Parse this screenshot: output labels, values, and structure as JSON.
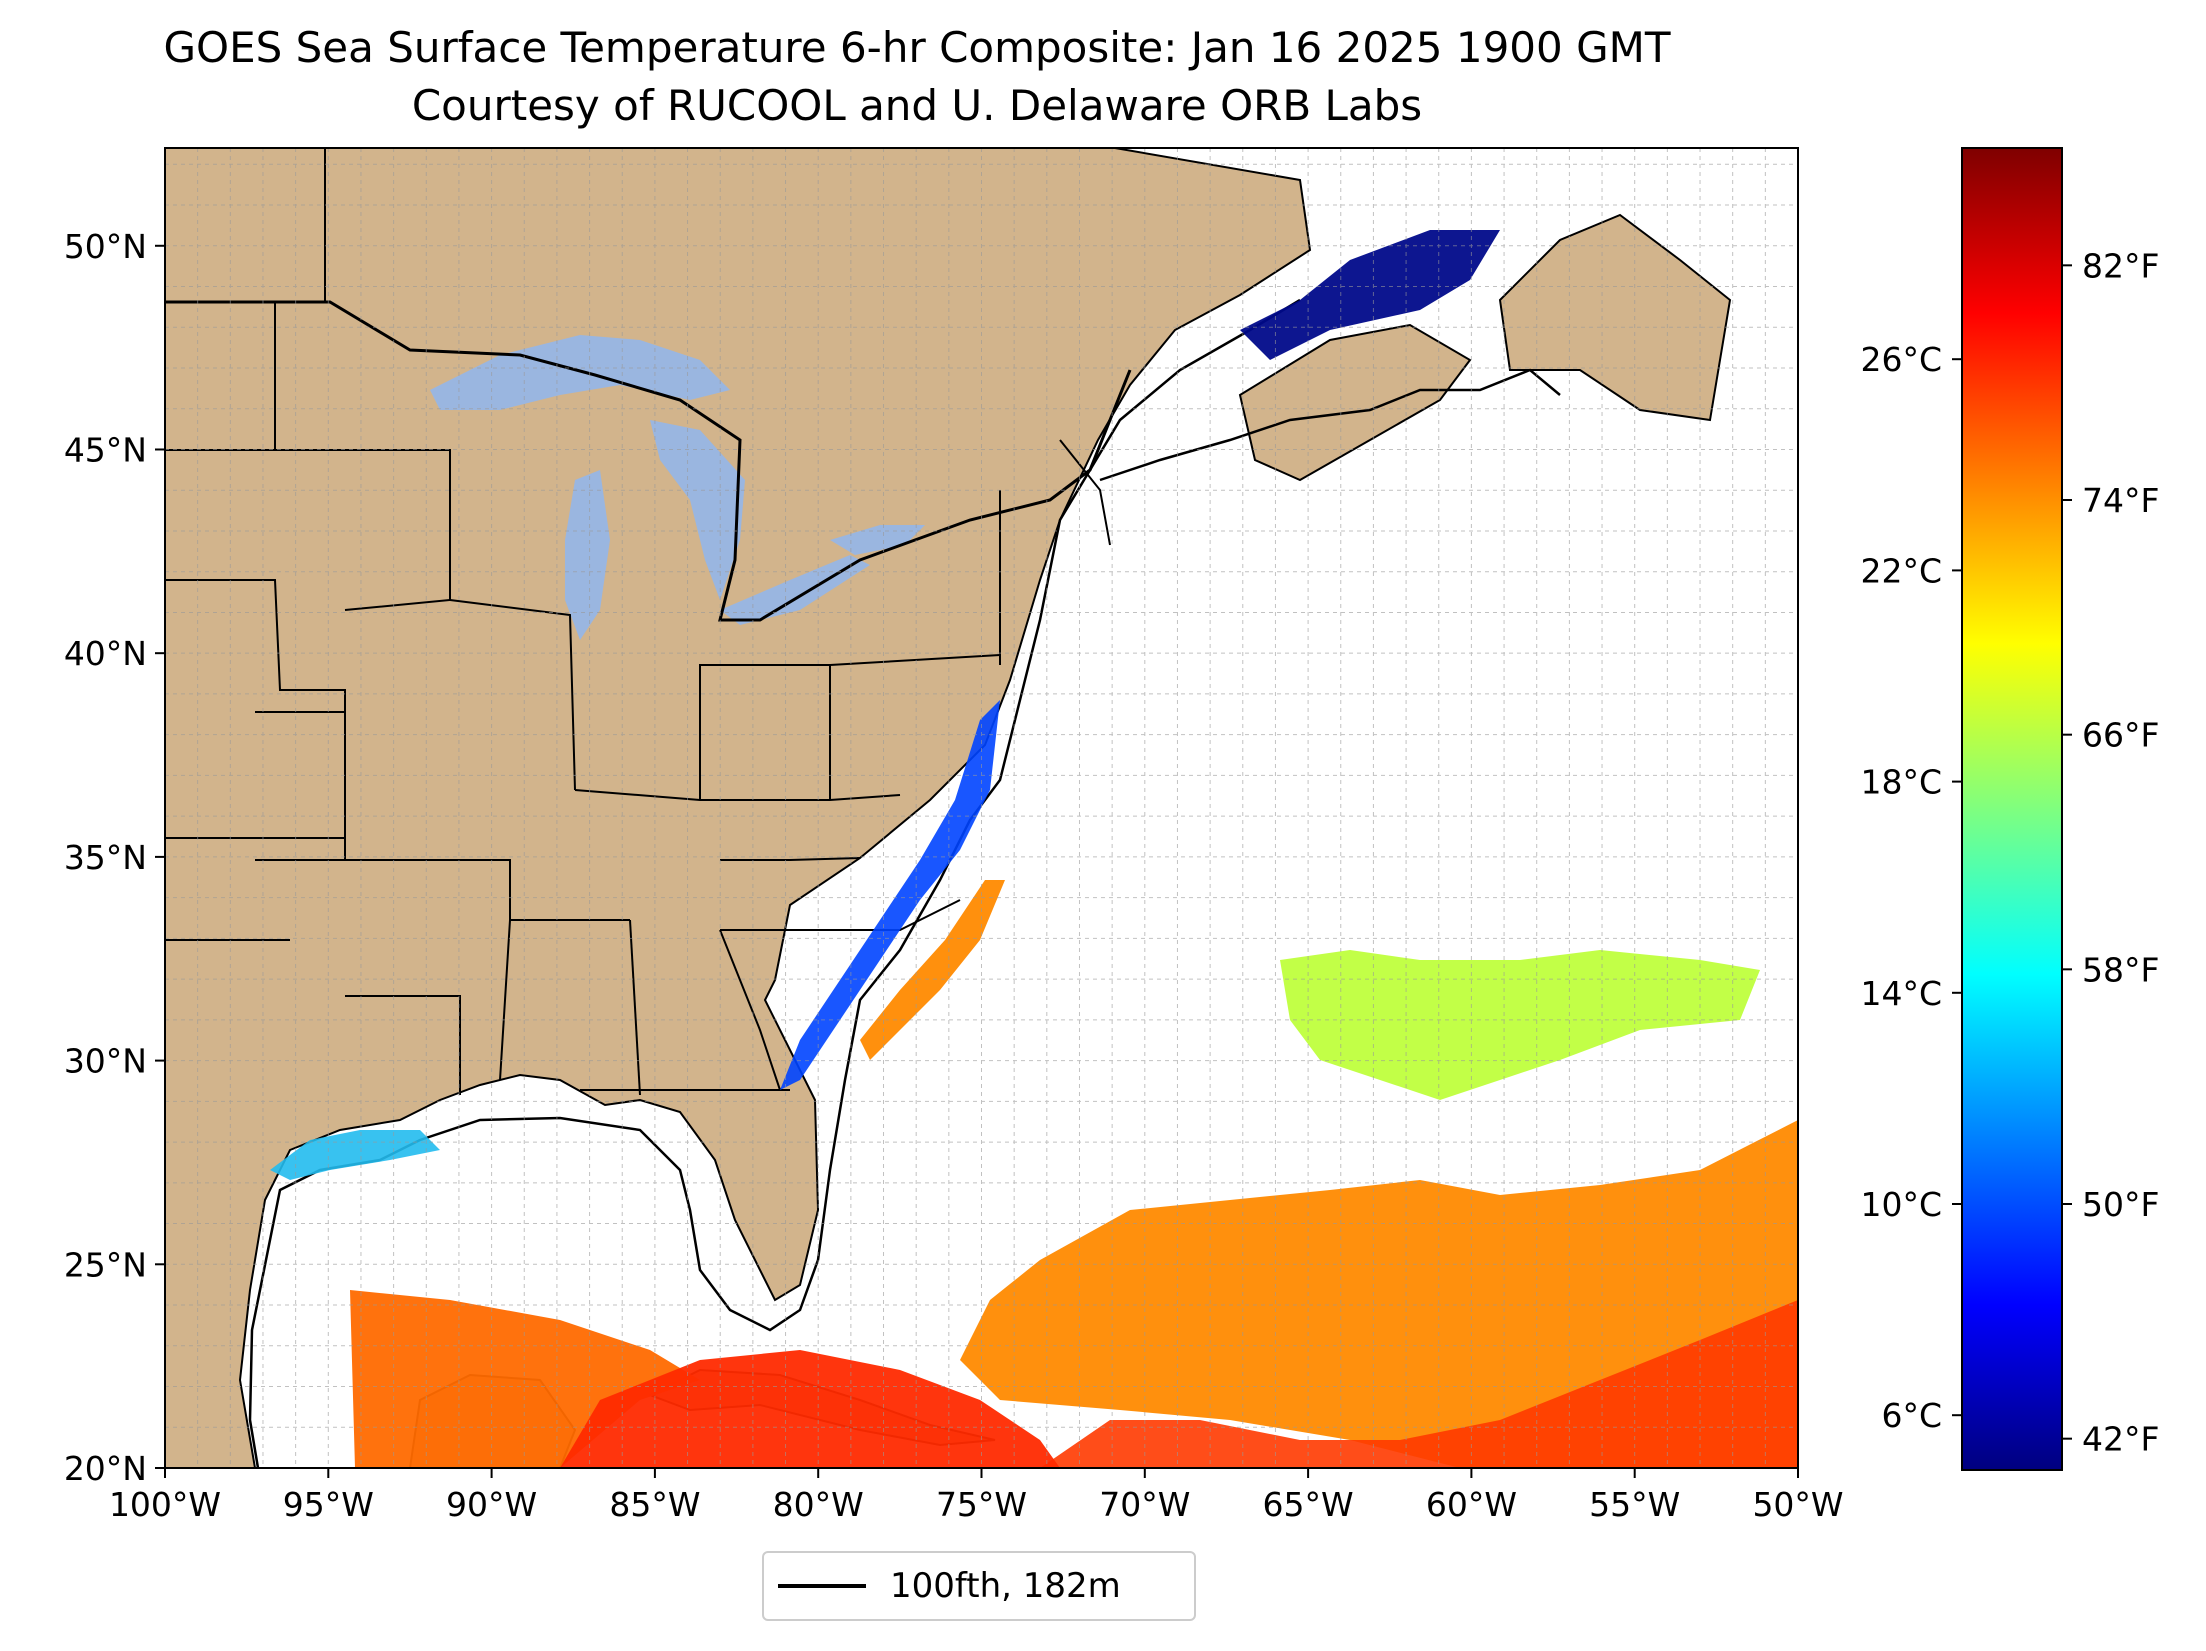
{
  "title_line1": "GOES Sea Surface Temperature 6-hr Composite: Jan 16 2025 1900 GMT",
  "title_line2": "Courtesy of RUCOOL and U. Delaware ORB Labs",
  "map": {
    "extent": {
      "lon": [
        -100,
        -50
      ],
      "lat": [
        20,
        52.4
      ]
    },
    "lat_ticks": [
      {
        "value": 20,
        "label": "20°N"
      },
      {
        "value": 25,
        "label": "25°N"
      },
      {
        "value": 30,
        "label": "30°N"
      },
      {
        "value": 35,
        "label": "35°N"
      },
      {
        "value": 40,
        "label": "40°N"
      },
      {
        "value": 45,
        "label": "45°N"
      },
      {
        "value": 50,
        "label": "50°N"
      }
    ],
    "lon_ticks": [
      {
        "value": -100,
        "label": "100°W"
      },
      {
        "value": -95,
        "label": "95°W"
      },
      {
        "value": -90,
        "label": "90°W"
      },
      {
        "value": -85,
        "label": "85°W"
      },
      {
        "value": -80,
        "label": "80°W"
      },
      {
        "value": -75,
        "label": "75°W"
      },
      {
        "value": -70,
        "label": "70°W"
      },
      {
        "value": -65,
        "label": "65°W"
      },
      {
        "value": -60,
        "label": "60°W"
      },
      {
        "value": -55,
        "label": "55°W"
      },
      {
        "value": -50,
        "label": "50°W"
      }
    ],
    "land_color": "#d2b48c",
    "lake_color": "#9ab6e0",
    "grid": "dashed, 1° spacing"
  },
  "colorbar": {
    "celsius_range": [
      5,
      30
    ],
    "celsius_ticks": [
      {
        "value": 6,
        "label": "6°C"
      },
      {
        "value": 10,
        "label": "10°C"
      },
      {
        "value": 14,
        "label": "14°C"
      },
      {
        "value": 18,
        "label": "18°C"
      },
      {
        "value": 22,
        "label": "22°C"
      },
      {
        "value": 26,
        "label": "26°C"
      }
    ],
    "fahrenheit_ticks": [
      {
        "value": 42,
        "label": "42°F"
      },
      {
        "value": 50,
        "label": "50°F"
      },
      {
        "value": 58,
        "label": "58°F"
      },
      {
        "value": 66,
        "label": "66°F"
      },
      {
        "value": 74,
        "label": "74°F"
      },
      {
        "value": 82,
        "label": "82°F"
      }
    ],
    "colormap": [
      "#00007f",
      "#0000ff",
      "#007fff",
      "#00ffff",
      "#7fff7f",
      "#ffff00",
      "#ff7f00",
      "#ff0000",
      "#7f0000"
    ]
  },
  "legend": {
    "label": "100fth, 182m"
  }
}
